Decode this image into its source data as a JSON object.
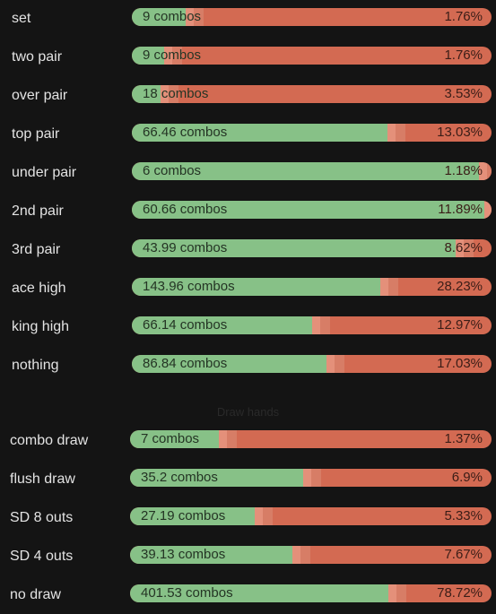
{
  "made_hands": [
    {
      "label": "set",
      "combos": "9 combos",
      "pct": "1.76%",
      "fill": 0.15
    },
    {
      "label": "two pair",
      "combos": "9 combos",
      "pct": "1.76%",
      "fill": 0.09
    },
    {
      "label": "over pair",
      "combos": "18 combos",
      "pct": "3.53%",
      "fill": 0.08
    },
    {
      "label": "top pair",
      "combos": "66.46 combos",
      "pct": "13.03%",
      "fill": 0.71
    },
    {
      "label": "under pair",
      "combos": "6 combos",
      "pct": "1.18%",
      "fill": 0.965
    },
    {
      "label": "2nd pair",
      "combos": "60.66 combos",
      "pct": "11.89%",
      "fill": 0.98
    },
    {
      "label": "3rd pair",
      "combos": "43.99 combos",
      "pct": "8.62%",
      "fill": 0.9
    },
    {
      "label": "ace high",
      "combos": "143.96 combos",
      "pct": "28.23%",
      "fill": 0.69
    },
    {
      "label": "king high",
      "combos": "66.14 combos",
      "pct": "12.97%",
      "fill": 0.5
    },
    {
      "label": "nothing",
      "combos": "86.84 combos",
      "pct": "17.03%",
      "fill": 0.54
    }
  ],
  "draw_section_title": "Draw hands",
  "draw_hands": [
    {
      "label": "combo draw",
      "combos": "7 combos",
      "pct": "1.37%",
      "fill": 0.245
    },
    {
      "label": "flush draw",
      "combos": "35.2 combos",
      "pct": "6.9%",
      "fill": 0.48
    },
    {
      "label": "SD 8 outs",
      "combos": "27.19 combos",
      "pct": "5.33%",
      "fill": 0.345
    },
    {
      "label": "SD 4 outs",
      "combos": "39.13 combos",
      "pct": "7.67%",
      "fill": 0.45
    },
    {
      "label": "no draw",
      "combos": "401.53 combos",
      "pct": "78.72%",
      "fill": 0.715
    }
  ],
  "colors": {
    "green": "#87c187",
    "red": "#d36a52",
    "light": "#e4907a",
    "background": "#141414"
  }
}
